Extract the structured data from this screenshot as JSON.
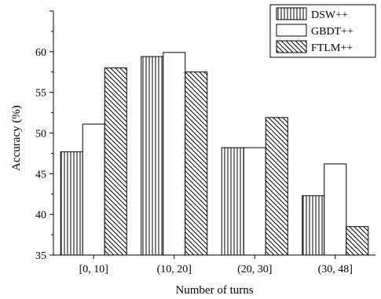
{
  "chart_data": {
    "type": "bar",
    "categories": [
      "[0, 10]",
      "(10, 20]",
      "(20, 30]",
      "(30, 48]"
    ],
    "series": [
      {
        "name": "DSW++",
        "values": [
          47.7,
          59.4,
          48.2,
          42.3
        ],
        "pattern": "vertical"
      },
      {
        "name": "GBDT++",
        "values": [
          51.1,
          59.9,
          48.2,
          46.2
        ],
        "pattern": "none"
      },
      {
        "name": "FTLM++",
        "values": [
          58.0,
          57.5,
          51.9,
          38.5
        ],
        "pattern": "diagonal"
      }
    ],
    "title": "",
    "xlabel": "Number of turns",
    "ylabel": "Accuracy (%)",
    "ylim": [
      35,
      65
    ],
    "yticks": [
      35,
      40,
      45,
      50,
      55,
      60
    ],
    "grid": false,
    "legend_position": "top-right",
    "colors": {
      "stroke": "#000000",
      "fill": "#ffffff"
    }
  }
}
